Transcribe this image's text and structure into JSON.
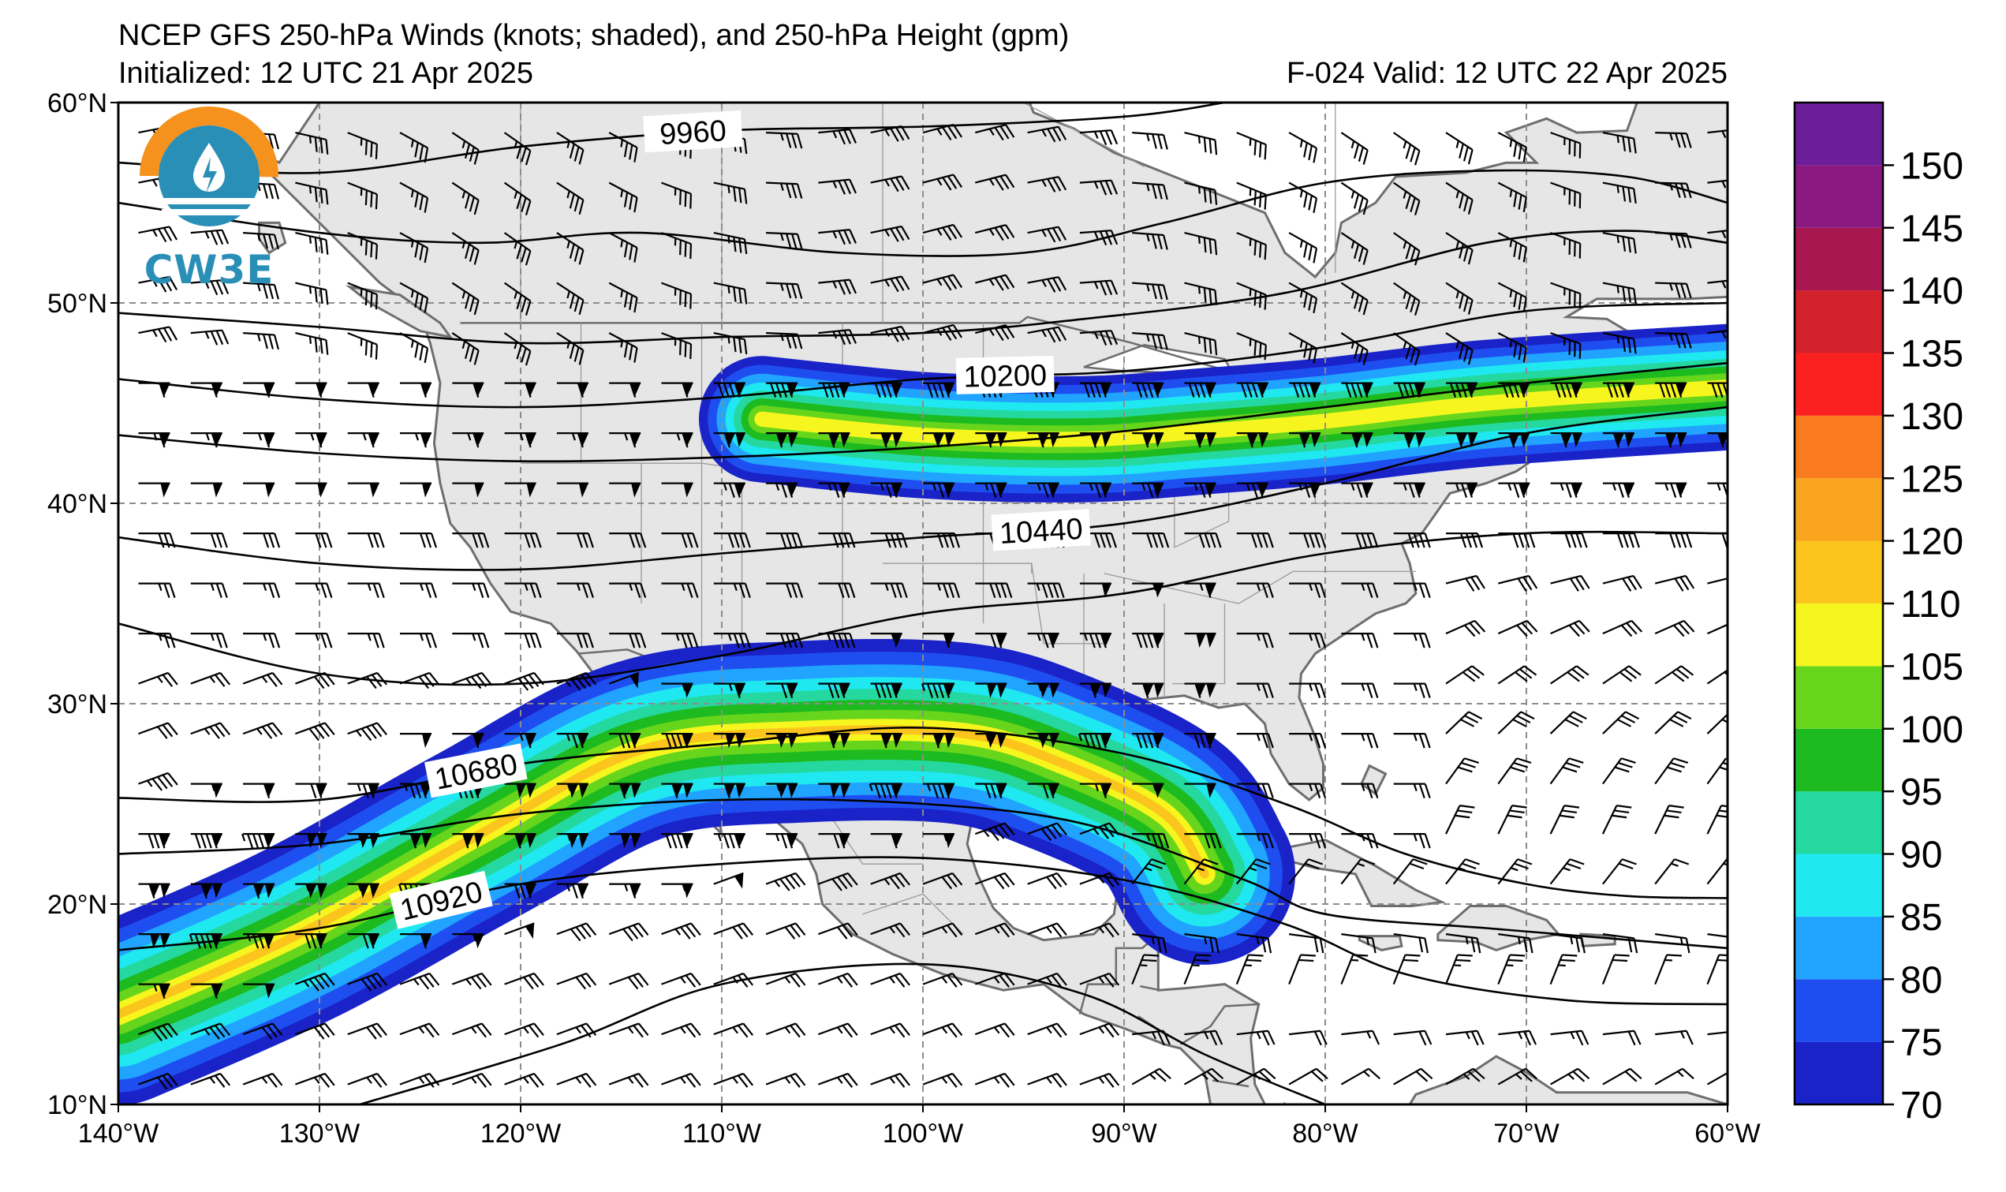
{
  "header": {
    "title": "NCEP GFS 250-hPa Winds (knots; shaded), and 250-hPa Height (gpm)",
    "initialized": "Initialized: 12 UTC 21 Apr 2025",
    "valid": "F-024  Valid: 12 UTC 22 Apr 2025"
  },
  "logo": {
    "text": "CW3E"
  },
  "map": {
    "lon_range": [
      -140,
      -60
    ],
    "lat_range": [
      10,
      60
    ],
    "lon_ticks": [
      "140°W",
      "130°W",
      "120°W",
      "110°W",
      "100°W",
      "90°W",
      "80°W",
      "70°W",
      "60°W"
    ],
    "lat_ticks": [
      "60°N",
      "50°N",
      "40°N",
      "30°N",
      "20°N",
      "10°N"
    ],
    "gridlines": "dashed",
    "land_color": "#e6e6e6",
    "coast_color": "#6e6e6e"
  },
  "height_contours": [
    {
      "label": "9960",
      "points": [
        [
          -140,
          57
        ],
        [
          -130,
          56.5
        ],
        [
          -120,
          57.8
        ],
        [
          -110,
          58.6
        ],
        [
          -100,
          58.8
        ],
        [
          -90,
          59.3
        ],
        [
          -85,
          60
        ]
      ]
    },
    {
      "label": "",
      "points": [
        [
          -140,
          55
        ],
        [
          -130,
          53.5
        ],
        [
          -122,
          53
        ],
        [
          -114,
          53.5
        ],
        [
          -104,
          52.5
        ],
        [
          -95,
          52.5
        ],
        [
          -88,
          54
        ],
        [
          -80,
          56
        ],
        [
          -72,
          56.6
        ],
        [
          -65,
          56.3
        ],
        [
          -60,
          55
        ]
      ]
    },
    {
      "label": "",
      "points": [
        [
          -140,
          49.5
        ],
        [
          -130,
          48.8
        ],
        [
          -120,
          48
        ],
        [
          -110,
          48.3
        ],
        [
          -100,
          48.5
        ],
        [
          -92,
          49.2
        ],
        [
          -82,
          50.5
        ],
        [
          -72,
          53
        ],
        [
          -65,
          53.6
        ],
        [
          -60,
          53
        ]
      ]
    },
    {
      "label": "10200",
      "points": [
        [
          -140,
          46.2
        ],
        [
          -130,
          45.2
        ],
        [
          -120,
          44.8
        ],
        [
          -110,
          45.3
        ],
        [
          -100,
          46.2
        ],
        [
          -90,
          46.6
        ],
        [
          -80,
          47.8
        ],
        [
          -70,
          49.6
        ],
        [
          -60,
          50
        ]
      ]
    },
    {
      "label": "",
      "points": [
        [
          -140,
          43.4
        ],
        [
          -130,
          42.5
        ],
        [
          -120,
          42.1
        ],
        [
          -110,
          42.3
        ],
        [
          -100,
          42.8
        ],
        [
          -90,
          43.6
        ],
        [
          -80,
          44.8
        ],
        [
          -70,
          46
        ],
        [
          -60,
          47
        ]
      ]
    },
    {
      "label": "10440",
      "points": [
        [
          -140,
          38.3
        ],
        [
          -130,
          37
        ],
        [
          -120,
          36.7
        ],
        [
          -110,
          37.5
        ],
        [
          -100,
          38.3
        ],
        [
          -90,
          39
        ],
        [
          -80,
          41
        ],
        [
          -70,
          43.5
        ],
        [
          -60,
          44.8
        ]
      ]
    },
    {
      "label": "",
      "points": [
        [
          -140,
          34
        ],
        [
          -130,
          31.5
        ],
        [
          -120,
          31
        ],
        [
          -110,
          32.4
        ],
        [
          -100,
          34.5
        ],
        [
          -90,
          35.5
        ],
        [
          -80,
          37.5
        ],
        [
          -70,
          38.5
        ],
        [
          -60,
          38.5
        ]
      ]
    },
    {
      "label": "10680",
      "points": [
        [
          -140,
          25.3
        ],
        [
          -130,
          25.2
        ],
        [
          -120,
          27
        ],
        [
          -110,
          28
        ],
        [
          -100,
          28.8
        ],
        [
          -90,
          27.5
        ],
        [
          -82,
          25
        ],
        [
          -76,
          22.5
        ],
        [
          -70,
          21
        ],
        [
          -65,
          20.4
        ],
        [
          -60,
          20.3
        ]
      ]
    },
    {
      "label": "",
      "points": [
        [
          -140,
          22.5
        ],
        [
          -130,
          23
        ],
        [
          -120,
          24.5
        ],
        [
          -110,
          25.2
        ],
        [
          -100,
          25
        ],
        [
          -92,
          24
        ],
        [
          -84,
          21.2
        ],
        [
          -80,
          19.5
        ],
        [
          -72,
          18.8
        ],
        [
          -66,
          18.3
        ],
        [
          -60,
          17.8
        ]
      ]
    },
    {
      "label": "10920",
      "points": [
        [
          -140,
          17.7
        ],
        [
          -130,
          18.8
        ],
        [
          -120,
          21
        ],
        [
          -110,
          22
        ],
        [
          -100,
          22.3
        ],
        [
          -90,
          21.2
        ],
        [
          -82,
          19
        ],
        [
          -76,
          16.5
        ],
        [
          -68,
          15.2
        ],
        [
          -60,
          15
        ]
      ]
    },
    {
      "label": "",
      "points": [
        [
          -128,
          10
        ],
        [
          -118,
          13
        ],
        [
          -110,
          16
        ],
        [
          -100,
          17
        ],
        [
          -92,
          15.5
        ],
        [
          -86,
          12.5
        ],
        [
          -80,
          10
        ]
      ]
    }
  ],
  "jet_regions": [
    {
      "levels": [
        75,
        85,
        95,
        110
      ],
      "axis": [
        [
          -140,
          14.5
        ],
        [
          -131,
          18.5
        ],
        [
          -122,
          23.5
        ],
        [
          -114,
          27.7
        ],
        [
          -106,
          28.6
        ],
        [
          -98,
          28.5
        ],
        [
          -93,
          27.0
        ],
        [
          -88,
          24.5
        ],
        [
          -86,
          21.5
        ]
      ],
      "max_speed": 112
    },
    {
      "levels": [
        75,
        85,
        95,
        110
      ],
      "axis": [
        [
          -108,
          44.2
        ],
        [
          -100,
          43.4
        ],
        [
          -92,
          43.2
        ],
        [
          -86,
          43.6
        ],
        [
          -80,
          44.1
        ],
        [
          -72,
          45
        ],
        [
          -60,
          45.8
        ]
      ],
      "max_speed": 107
    }
  ],
  "colorbar": {
    "levels": [
      70,
      75,
      80,
      85,
      90,
      95,
      100,
      105,
      110,
      120,
      125,
      130,
      135,
      140,
      145,
      150,
      155
    ],
    "colors": [
      "#1a23c8",
      "#1f4ef0",
      "#20a4ff",
      "#1fe8f0",
      "#24d8a0",
      "#1dbb20",
      "#66d51c",
      "#f6f61e",
      "#fbc51e",
      "#f9a41d",
      "#f97a1f",
      "#fb2121",
      "#d3212c",
      "#a8174f",
      "#8a1a82",
      "#6c1e9a"
    ],
    "tick_labels": [
      "70",
      "75",
      "80",
      "85",
      "90",
      "95",
      "100",
      "105",
      "110",
      "120",
      "125",
      "130",
      "135",
      "140",
      "145",
      "150"
    ]
  }
}
